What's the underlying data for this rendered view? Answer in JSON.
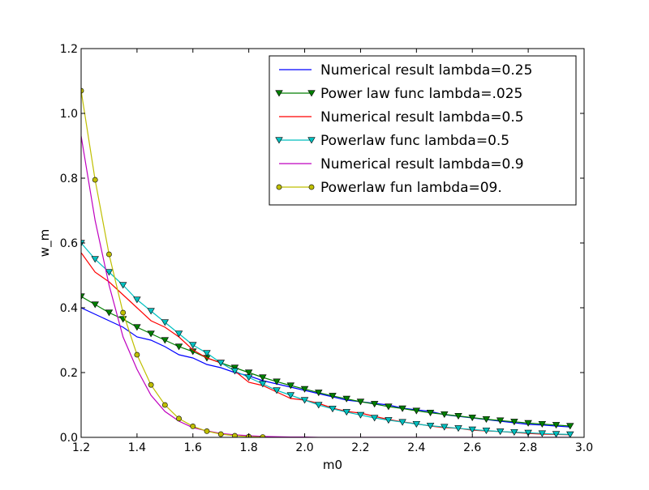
{
  "chart_data": {
    "type": "line",
    "title": "",
    "xlabel": "m0",
    "ylabel": "w_m",
    "xlim": [
      1.2,
      3.0
    ],
    "ylim": [
      0.0,
      1.2
    ],
    "xticks": [
      1.2,
      1.4,
      1.6,
      1.8,
      2.0,
      2.2,
      2.4,
      2.6,
      2.8,
      3.0
    ],
    "xtick_labels": [
      "1.2",
      "1.4",
      "1.6",
      "1.8",
      "2.0",
      "2.2",
      "2.4",
      "2.6",
      "2.8",
      "3.0"
    ],
    "yticks": [
      0.0,
      0.2,
      0.4,
      0.6,
      0.8,
      1.0,
      1.2
    ],
    "ytick_labels": [
      "0.0",
      "0.2",
      "0.4",
      "0.6",
      "0.8",
      "1.0",
      "1.2"
    ],
    "grid": false,
    "legend_position": "top-right",
    "x": [
      1.2,
      1.25,
      1.3,
      1.35,
      1.4,
      1.45,
      1.5,
      1.55,
      1.6,
      1.65,
      1.7,
      1.75,
      1.8,
      1.85,
      1.9,
      1.95,
      2.0,
      2.05,
      2.1,
      2.15,
      2.2,
      2.25,
      2.3,
      2.35,
      2.4,
      2.45,
      2.5,
      2.55,
      2.6,
      2.65,
      2.7,
      2.75,
      2.8,
      2.85,
      2.9,
      2.95
    ],
    "series": [
      {
        "name": "Numerical result lambda=0.25",
        "color": "#0000ff",
        "marker": "none",
        "values": [
          0.4,
          0.38,
          0.36,
          0.34,
          0.31,
          0.3,
          0.28,
          0.255,
          0.245,
          0.225,
          0.215,
          0.2,
          0.19,
          0.175,
          0.165,
          0.155,
          0.145,
          0.135,
          0.125,
          0.115,
          0.11,
          0.105,
          0.1,
          0.09,
          0.085,
          0.08,
          0.07,
          0.065,
          0.06,
          0.055,
          0.05,
          0.045,
          0.04,
          0.038,
          0.035,
          0.032
        ]
      },
      {
        "name": "Power law func lambda=.025",
        "color": "#007f00",
        "marker": "triangle-down",
        "values": [
          0.435,
          0.41,
          0.385,
          0.365,
          0.34,
          0.32,
          0.3,
          0.28,
          0.265,
          0.245,
          0.23,
          0.215,
          0.2,
          0.185,
          0.172,
          0.16,
          0.149,
          0.138,
          0.128,
          0.119,
          0.11,
          0.103,
          0.095,
          0.089,
          0.082,
          0.076,
          0.071,
          0.066,
          0.061,
          0.056,
          0.052,
          0.048,
          0.044,
          0.041,
          0.038,
          0.035
        ]
      },
      {
        "name": "Numerical result lambda=0.5",
        "color": "#ff0000",
        "marker": "none",
        "values": [
          0.57,
          0.51,
          0.48,
          0.44,
          0.4,
          0.36,
          0.34,
          0.31,
          0.27,
          0.245,
          0.23,
          0.205,
          0.17,
          0.16,
          0.14,
          0.12,
          0.115,
          0.105,
          0.09,
          0.08,
          0.075,
          0.065,
          0.055,
          0.048,
          0.042,
          0.035,
          0.03,
          0.028,
          0.022,
          0.02,
          0.018,
          0.015,
          0.012,
          0.01,
          0.009,
          0.008
        ]
      },
      {
        "name": "Powerlaw func lambda=0.5",
        "color": "#00bfbf",
        "marker": "triangle-down",
        "values": [
          0.6,
          0.55,
          0.51,
          0.47,
          0.425,
          0.39,
          0.355,
          0.32,
          0.285,
          0.26,
          0.23,
          0.205,
          0.185,
          0.165,
          0.145,
          0.13,
          0.115,
          0.1,
          0.088,
          0.078,
          0.069,
          0.06,
          0.053,
          0.047,
          0.041,
          0.036,
          0.032,
          0.028,
          0.024,
          0.021,
          0.018,
          0.016,
          0.014,
          0.012,
          0.01,
          0.009
        ]
      },
      {
        "name": "Numerical result lambda=0.9",
        "color": "#bf00bf",
        "marker": "none",
        "values": [
          0.93,
          0.67,
          0.47,
          0.31,
          0.21,
          0.13,
          0.08,
          0.05,
          0.03,
          0.02,
          0.012,
          0.008,
          0.005,
          0.003,
          0.002,
          0.001,
          0.001,
          0.0,
          0.0,
          0.0,
          0.0,
          0.0,
          0.0,
          0.0,
          0.0,
          0.0,
          0.0,
          0.0,
          0.0,
          0.0,
          0.0,
          0.0,
          0.0,
          0.0,
          0.0,
          0.0
        ]
      },
      {
        "name": "Powerlaw fun lambda=09.",
        "color": "#bfbf00",
        "marker": "circle",
        "x": [
          1.2,
          1.25,
          1.3,
          1.35,
          1.4,
          1.45,
          1.5,
          1.55,
          1.6,
          1.65,
          1.7,
          1.75,
          1.8,
          1.85
        ],
        "values": [
          1.07,
          0.795,
          0.565,
          0.385,
          0.255,
          0.162,
          0.1,
          0.058,
          0.034,
          0.019,
          0.01,
          0.005,
          0.002,
          0.001
        ]
      }
    ]
  }
}
